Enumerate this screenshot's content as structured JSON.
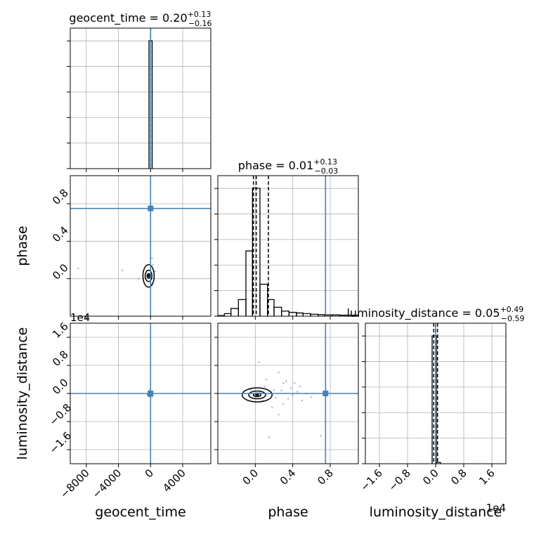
{
  "chart_data": {
    "type": "corner",
    "parameters": [
      {
        "name": "geocent_time",
        "axis_label": "geocent_time",
        "value": "0.20",
        "plus": "+0.13",
        "minus": "−0.16",
        "truth": 0,
        "ticks": [
          -8000,
          -4000,
          0,
          4000
        ],
        "tick_labels": [
          "−8000",
          "−4000",
          "0",
          "4000"
        ],
        "range": [
          -10000,
          7500
        ]
      },
      {
        "name": "phase",
        "axis_label": "phase",
        "value": "0.01",
        "plus": "+0.13",
        "minus": "−0.03",
        "truth": 0.75,
        "ticks": [
          0.0,
          0.4,
          0.8
        ],
        "tick_labels": [
          "0.0",
          "0.4",
          "0.8"
        ],
        "range": [
          -0.4,
          1.1
        ]
      },
      {
        "name": "luminosity_distance",
        "axis_label": "luminosity_distance",
        "value": "0.05",
        "plus": "+0.49",
        "minus": "−0.59",
        "truth": 0,
        "ticks": [
          -1.6,
          -0.8,
          0.0,
          0.8,
          1.6
        ],
        "tick_labels": [
          "−1.6",
          "−0.8",
          "0.0",
          "0.8",
          "1.6"
        ],
        "range": [
          -2.0,
          2.0
        ],
        "offset_label": "1e4"
      }
    ],
    "title_separator": " = ",
    "histograms": [
      {
        "param": "geocent_time",
        "bins": [
          {
            "x0": -200,
            "x1": 200,
            "h": 1.0
          }
        ],
        "quantiles": [
          0.04,
          0.2,
          0.33
        ],
        "ymax": 1.0
      },
      {
        "param": "phase",
        "bins": [
          {
            "x0": -0.4,
            "x1": -0.33,
            "h": 0.005
          },
          {
            "x0": -0.33,
            "x1": -0.26,
            "h": 0.02
          },
          {
            "x0": -0.26,
            "x1": -0.18,
            "h": 0.06
          },
          {
            "x0": -0.18,
            "x1": -0.1,
            "h": 0.13
          },
          {
            "x0": -0.1,
            "x1": -0.03,
            "h": 0.51
          },
          {
            "x0": -0.03,
            "x1": 0.05,
            "h": 1.0
          },
          {
            "x0": 0.05,
            "x1": 0.13,
            "h": 0.25
          },
          {
            "x0": 0.13,
            "x1": 0.2,
            "h": 0.13
          },
          {
            "x0": 0.2,
            "x1": 0.28,
            "h": 0.07
          },
          {
            "x0": 0.28,
            "x1": 0.36,
            "h": 0.04
          },
          {
            "x0": 0.36,
            "x1": 0.44,
            "h": 0.03
          },
          {
            "x0": 0.44,
            "x1": 0.51,
            "h": 0.025
          },
          {
            "x0": 0.51,
            "x1": 0.59,
            "h": 0.02
          },
          {
            "x0": 0.59,
            "x1": 0.67,
            "h": 0.015
          },
          {
            "x0": 0.67,
            "x1": 0.74,
            "h": 0.012
          },
          {
            "x0": 0.74,
            "x1": 0.82,
            "h": 0.01
          },
          {
            "x0": 0.82,
            "x1": 0.9,
            "h": 0.01
          },
          {
            "x0": 0.9,
            "x1": 1.1,
            "h": 0.008
          }
        ],
        "quantiles": [
          -0.02,
          0.01,
          0.14
        ],
        "ymax": 1.0
      },
      {
        "param": "luminosity_distance",
        "bins": [
          {
            "x0": -0.1,
            "x1": 0.02,
            "h": 1.0
          },
          {
            "x0": 0.02,
            "x1": 0.14,
            "h": 0.01
          }
        ],
        "quantiles": [
          -0.054,
          0.005,
          0.054
        ],
        "ymax": 1.0
      }
    ],
    "scatter": [
      {
        "x": "geocent_time",
        "y": "phase",
        "points": [
          [
            -9000,
            0.11
          ],
          [
            -3500,
            0.09
          ],
          [
            -1500,
            0.0
          ],
          [
            200,
            0.22
          ],
          [
            600,
            0.08
          ],
          [
            100,
            -0.05
          ],
          [
            -200,
            0.05
          ],
          [
            300,
            0.15
          ]
        ]
      },
      {
        "x": "geocent_time",
        "y": "luminosity_distance",
        "points": [
          [
            -200,
            -0.05
          ],
          [
            100,
            0.02
          ],
          [
            -300,
            0.05
          ],
          [
            200,
            -0.1
          ],
          [
            -100,
            0.1
          ]
        ]
      },
      {
        "x": "phase",
        "y": "luminosity_distance",
        "points": [
          [
            0.04,
            0.9
          ],
          [
            0.25,
            0.6
          ],
          [
            0.3,
            0.3
          ],
          [
            0.38,
            0.15
          ],
          [
            0.45,
            0.05
          ],
          [
            0.2,
            0.1
          ],
          [
            0.1,
            0.2
          ],
          [
            0.3,
            -0.3
          ],
          [
            0.25,
            -0.6
          ],
          [
            0.18,
            -0.4
          ],
          [
            0.48,
            0.2
          ],
          [
            0.55,
            0.0
          ],
          [
            0.6,
            -0.1
          ],
          [
            0.7,
            -1.2
          ],
          [
            0.15,
            -1.25
          ],
          [
            0.12,
            0.4
          ],
          [
            -0.05,
            0.1
          ],
          [
            0.35,
            -0.15
          ],
          [
            0.28,
            0.08
          ],
          [
            0.22,
            -0.12
          ],
          [
            0.4,
            -0.05
          ],
          [
            0.08,
            -0.2
          ],
          [
            0.33,
            0.35
          ],
          [
            0.5,
            -0.2
          ],
          [
            0.05,
            0.02
          ],
          [
            0.42,
            0.3
          ]
        ]
      }
    ],
    "contours": [
      {
        "x": "geocent_time",
        "y": "phase",
        "cx": -250,
        "cy": 0.03,
        "levels": [
          {
            "rx": 180,
            "ry": 0.025
          },
          {
            "rx": 420,
            "ry": 0.06
          },
          {
            "rx": 700,
            "ry": 0.12
          }
        ]
      },
      {
        "x": "phase",
        "y": "luminosity_distance",
        "cx": 0.02,
        "cy": -0.04,
        "levels": [
          {
            "rx": 0.04,
            "ry": 0.05
          },
          {
            "rx": 0.09,
            "ry": 0.11
          },
          {
            "rx": 0.16,
            "ry": 0.2
          }
        ]
      },
      {
        "x": "geocent_time",
        "y": "luminosity_distance",
        "cx": -100,
        "cy": -0.03,
        "levels": [
          {
            "rx": 150,
            "ry": 0.03
          },
          {
            "rx": 250,
            "ry": 0.05
          }
        ]
      }
    ],
    "grid": true,
    "colors": {
      "truth": "#4682b4",
      "hist": "#000000",
      "grid": "#b0b0b0",
      "scatter": "#888888"
    }
  }
}
